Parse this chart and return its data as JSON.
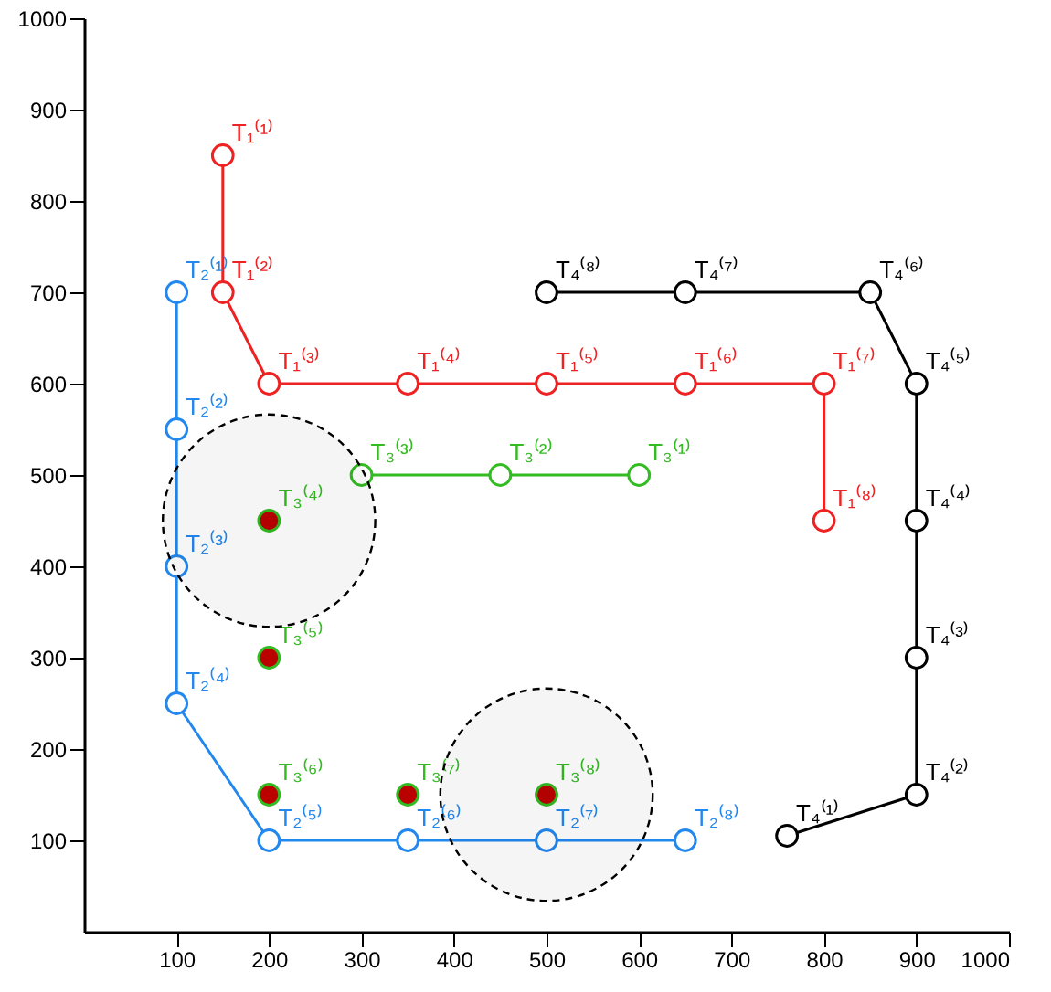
{
  "chart_data": {
    "type": "line",
    "xlim": [
      0,
      1000
    ],
    "ylim": [
      0,
      1000
    ],
    "xticks": [
      100,
      200,
      300,
      400,
      500,
      600,
      700,
      800,
      900,
      1000
    ],
    "yticks": [
      100,
      200,
      300,
      400,
      500,
      600,
      700,
      800,
      900,
      1000
    ],
    "marker": "circle",
    "series": [
      {
        "color": "#ee2222",
        "x": [
          150,
          150,
          200,
          350,
          500,
          650,
          800,
          800
        ],
        "values": [
          850,
          700,
          600,
          600,
          600,
          600,
          600,
          450
        ],
        "value_labels": [
          "T₁⁽¹⁾",
          "T₁⁽²⁾",
          "T₁⁽³⁾",
          "T₁⁽⁴⁾",
          "T₁⁽⁵⁾",
          "T₁⁽⁶⁾",
          "T₁⁽⁷⁾",
          "T₁⁽⁸⁾"
        ]
      },
      {
        "color": "#2288ee",
        "x": [
          100,
          100,
          100,
          100,
          200,
          350,
          500,
          650
        ],
        "values": [
          700,
          550,
          400,
          250,
          100,
          100,
          100,
          100
        ],
        "value_labels": [
          "T₂⁽¹⁾",
          "T₂⁽²⁾",
          "T₂⁽³⁾",
          "T₂⁽⁴⁾",
          "T₂⁽⁵⁾",
          "T₂⁽⁶⁾",
          "T₂⁽⁷⁾",
          "T₂⁽⁸⁾"
        ]
      },
      {
        "color": "#33bb22",
        "x": [
          600,
          450,
          300
        ],
        "values": [
          500,
          500,
          500
        ],
        "value_labels": [
          "T₃⁽¹⁾",
          "T₃⁽²⁾",
          "T₃⁽³⁾"
        ]
      },
      {
        "type": "scatter",
        "color": "#33bb22",
        "colors": [
          "#bb0000",
          "#bb0000",
          "#bb0000",
          "#bb0000",
          "#bb0000"
        ],
        "x": [
          200,
          200,
          200,
          350,
          500
        ],
        "values": [
          450,
          300,
          150,
          150,
          150
        ],
        "value_labels": [
          "T₃⁽⁴⁾",
          "T₃⁽⁵⁾",
          "T₃⁽⁶⁾",
          "T₃⁽⁷⁾",
          "T₃⁽⁸⁾"
        ]
      },
      {
        "color": "#000000",
        "x": [
          760,
          900,
          900,
          900,
          900,
          850,
          650,
          500
        ],
        "values": [
          105,
          150,
          300,
          450,
          600,
          700,
          700,
          700
        ],
        "value_labels": [
          "T₄⁽¹⁾",
          "T₄⁽²⁾",
          "T₄⁽³⁾",
          "T₄⁽⁴⁾",
          "T₄⁽⁵⁾",
          "T₄⁽⁶⁾",
          "T₄⁽⁷⁾",
          "T₄⁽⁸⁾"
        ]
      },
      {
        "type": "bubble",
        "color": "#000000",
        "line_style": "dashed",
        "x": [
          200,
          500
        ],
        "values": [
          450,
          150
        ],
        "sizes": [
          1,
          1
        ]
      }
    ]
  }
}
